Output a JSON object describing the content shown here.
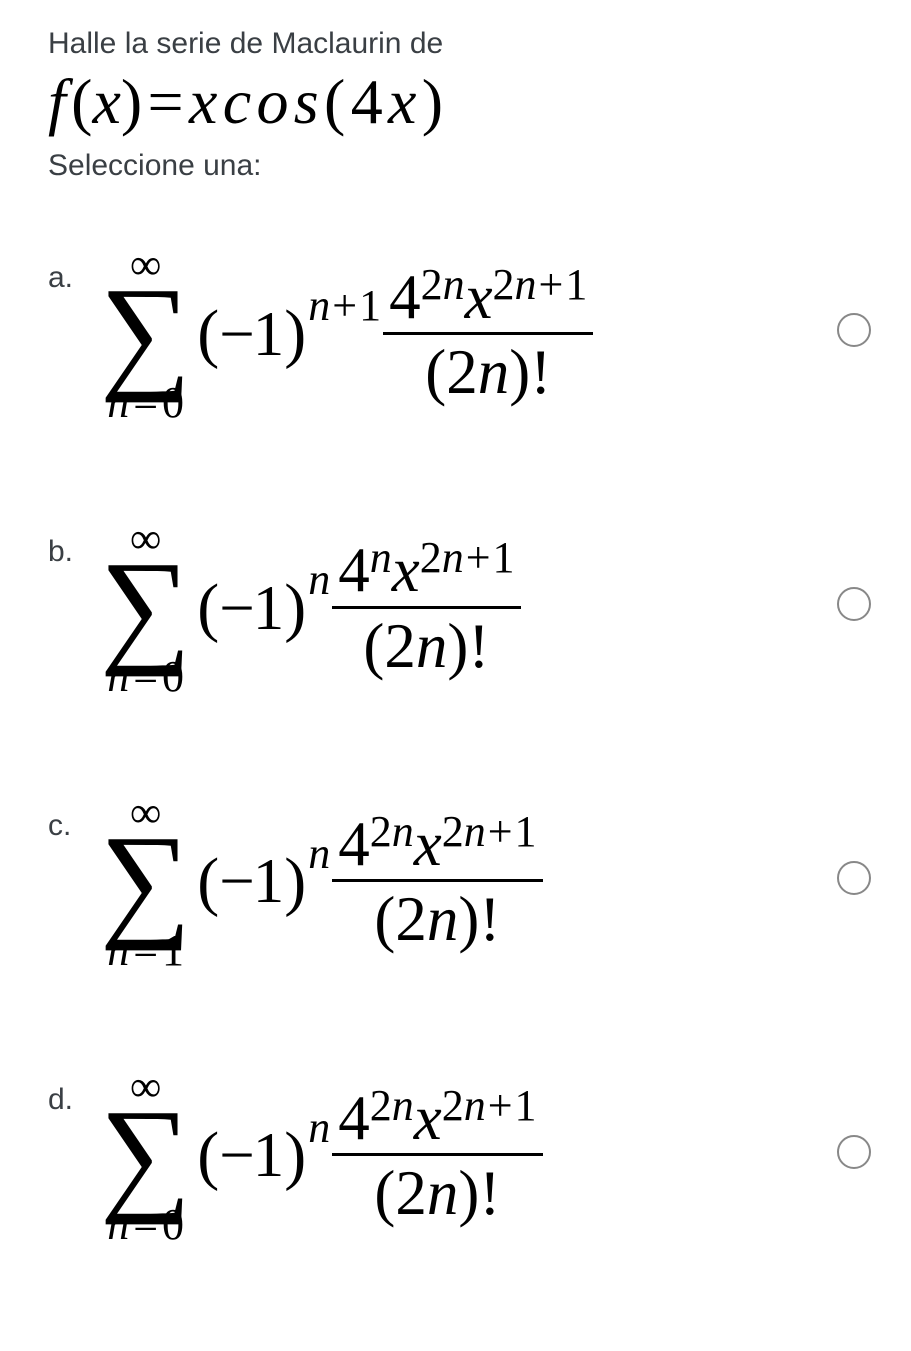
{
  "question": {
    "stem_text": "Halle la serie de Maclaurin de",
    "function_latex_html": "<span class=\"ital\">f</span> (<span class=\"ital\">x</span>)=<span class=\"ital\">x</span> <span class=\"ital\">c</span> <span class=\"ital\">o</span> <span class=\"ital\">s</span>(4<span class=\"ital\">x</span>)",
    "select_one": "Seleccione una:"
  },
  "options": [
    {
      "letter": "a.",
      "lower_limit_n": "0",
      "outer_exponent": "n+1",
      "numerator_4_exponent": "2n",
      "x_exponent": "2n+1"
    },
    {
      "letter": "b.",
      "lower_limit_n": "0",
      "outer_exponent": "n",
      "numerator_4_exponent": "n",
      "x_exponent": "2n+1"
    },
    {
      "letter": "c.",
      "lower_limit_n": "1",
      "outer_exponent": "n",
      "numerator_4_exponent": "2n",
      "x_exponent": "2n+1"
    },
    {
      "letter": "d.",
      "lower_limit_n": "0",
      "outer_exponent": "n",
      "numerator_4_exponent": "2n",
      "x_exponent": "2n+1"
    }
  ],
  "sigma_upper": "∞",
  "denominator_inner": "2n",
  "colors": {
    "text": "#3a3f44",
    "math": "#000000",
    "radio_border": "#888888",
    "background": "#ffffff"
  }
}
